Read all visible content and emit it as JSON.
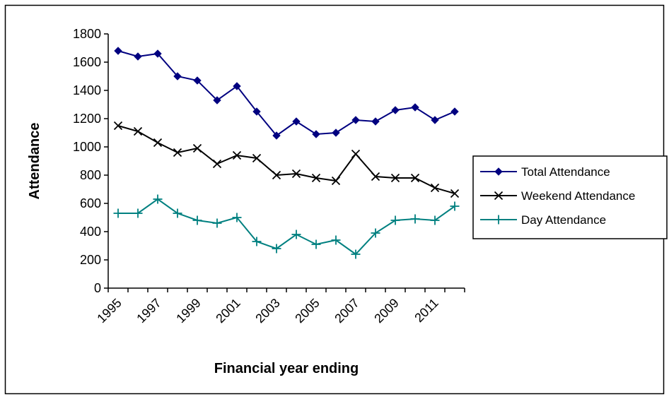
{
  "chart_data": {
    "type": "line",
    "title": "",
    "xlabel": "Financial year ending",
    "ylabel": "Attendance",
    "ylim": [
      0,
      1800
    ],
    "yticks": [
      0,
      200,
      400,
      600,
      800,
      1000,
      1200,
      1400,
      1600,
      1800
    ],
    "x": [
      1995,
      1996,
      1997,
      1998,
      1999,
      2000,
      2001,
      2002,
      2003,
      2004,
      2005,
      2006,
      2007,
      2008,
      2009,
      2010,
      2011,
      2012
    ],
    "xtick_labels": [
      "1995",
      "1997",
      "1999",
      "2001",
      "2003",
      "2005",
      "2007",
      "2009",
      "2011"
    ],
    "grid": false,
    "legend": "right",
    "series": [
      {
        "name": "Total Attendance",
        "marker": "diamond",
        "color": "#000080",
        "values": [
          1680,
          1640,
          1660,
          1500,
          1470,
          1330,
          1430,
          1250,
          1080,
          1180,
          1090,
          1100,
          1190,
          1180,
          1260,
          1280,
          1190,
          1250
        ]
      },
      {
        "name": "Weekend Attendance",
        "marker": "x",
        "color": "#000000",
        "values": [
          1150,
          1110,
          1030,
          960,
          990,
          880,
          940,
          920,
          800,
          810,
          780,
          760,
          950,
          790,
          780,
          780,
          710,
          670
        ]
      },
      {
        "name": "Day Attendance",
        "marker": "plus",
        "color": "#008080",
        "values": [
          530,
          530,
          630,
          530,
          480,
          460,
          500,
          330,
          280,
          380,
          310,
          340,
          240,
          390,
          480,
          490,
          480,
          580
        ]
      }
    ]
  }
}
